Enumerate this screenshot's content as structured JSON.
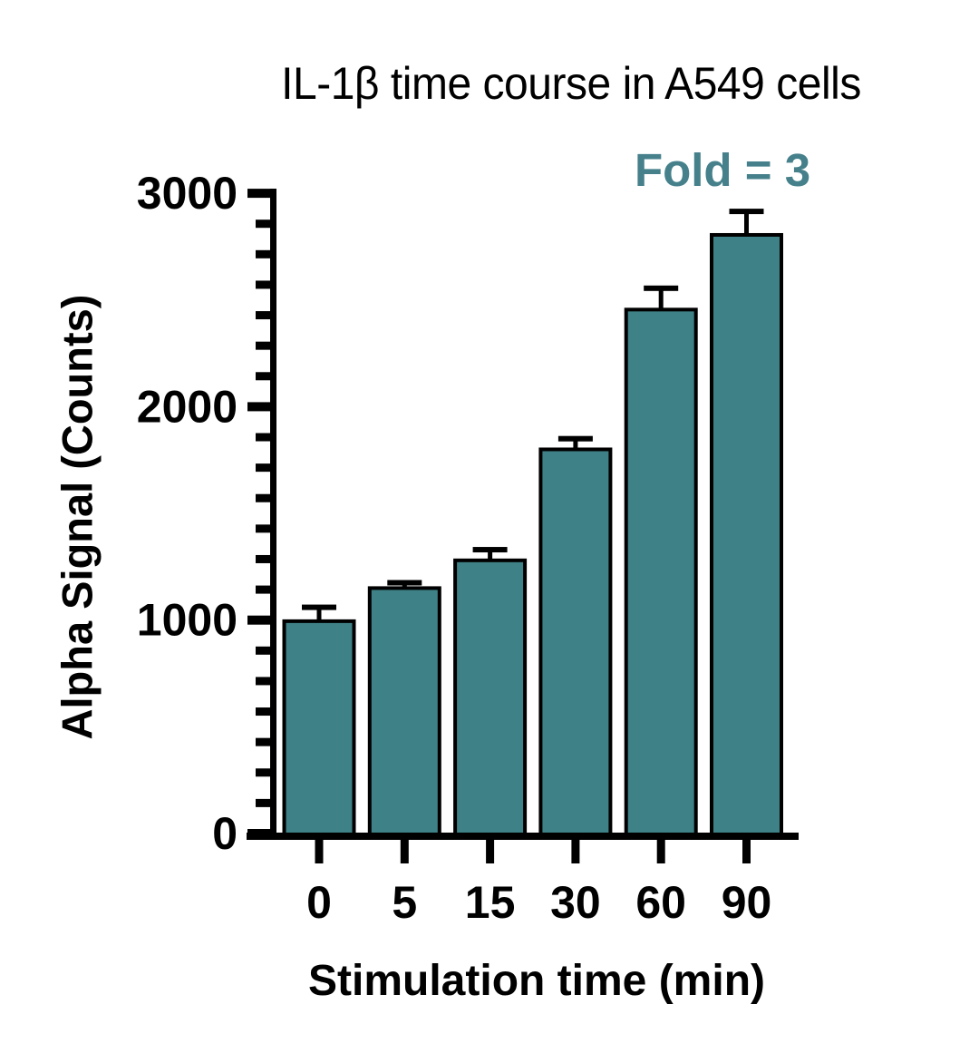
{
  "chart_data": {
    "type": "bar",
    "title": "IL-1β time course in A549 cells",
    "annotation": "Fold = 3",
    "xlabel": "Stimulation time (min)",
    "ylabel": "Alpha Signal (Counts)",
    "categories": [
      "0",
      "5",
      "15",
      "30",
      "60",
      "90"
    ],
    "values": [
      995,
      1150,
      1280,
      1800,
      2455,
      2805
    ],
    "errors_plus": [
      65,
      25,
      50,
      50,
      100,
      110
    ],
    "error_bars": "upper_only",
    "ylim": [
      0,
      3000
    ],
    "ytick_interval": 1000,
    "ytick_labels": [
      "0",
      "1000",
      "2000",
      "3000"
    ],
    "yminor_divisions": 7,
    "grid": false,
    "legend": false,
    "colors": {
      "bar_fill": "#3E8186",
      "bar_edge": "#000000",
      "axis": "#000000",
      "text": "#000000",
      "annotation": "#45808B",
      "background": "#FFFFFF"
    }
  }
}
